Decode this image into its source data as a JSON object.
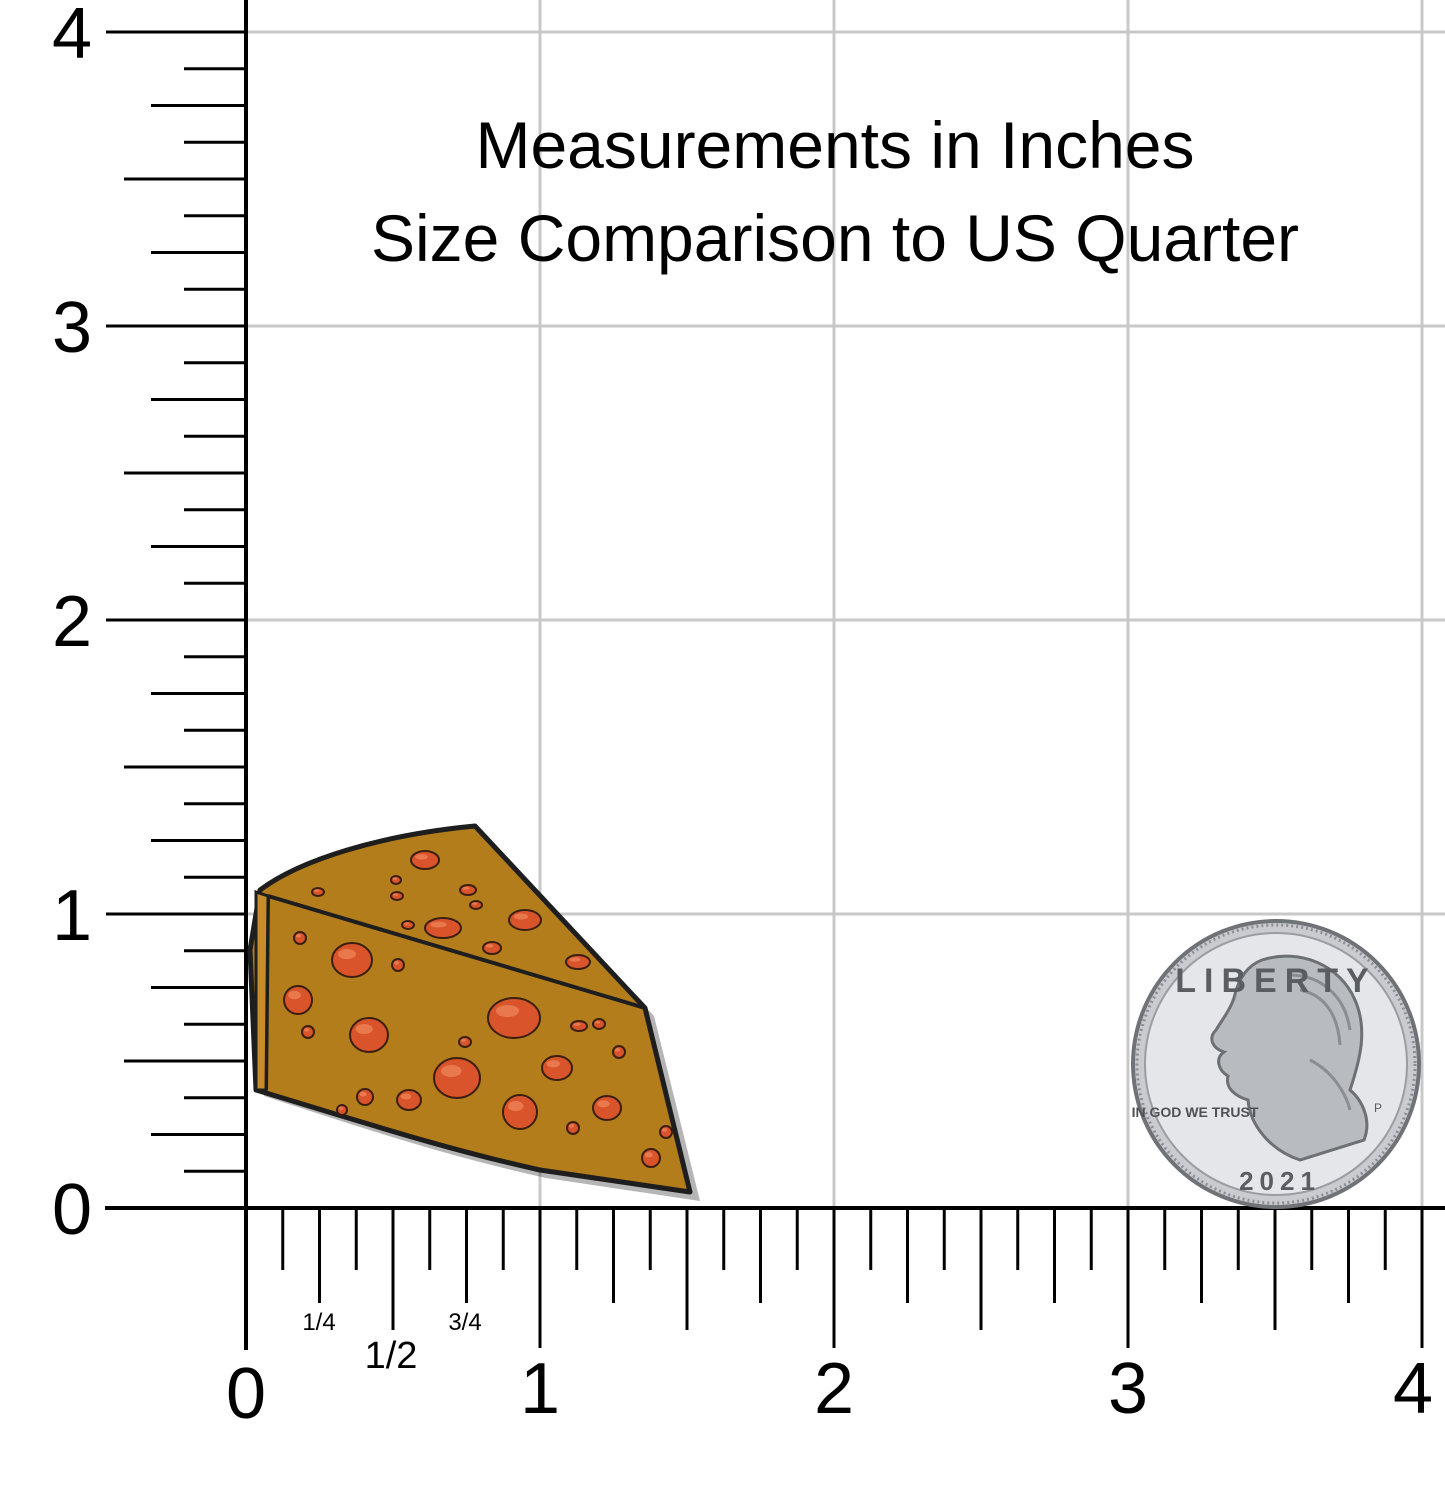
{
  "title": {
    "line1": "Measurements in Inches",
    "line2": "Size Comparison to US Quarter"
  },
  "ruler": {
    "unit": "in",
    "x_range": [
      0,
      4
    ],
    "y_range": [
      0,
      4
    ],
    "subdivisions_per_inch": 8,
    "y_labels": [
      "0",
      "1",
      "2",
      "3",
      "4"
    ],
    "x_labels": [
      "0",
      "1",
      "2",
      "3",
      "4"
    ],
    "fraction_labels": [
      "1/4",
      "1/2",
      "3/4"
    ]
  },
  "quarter": {
    "top_text": "LIBERTY",
    "motto": "IN GOD WE TRUST",
    "year": "2021",
    "mint_mark": "P"
  },
  "colors": {
    "grid": "#c8c8c8",
    "ruler": "#000000",
    "cheese": "#b37d1c",
    "cheese_outline": "#1e1e1e",
    "holes": "#d9532b",
    "coin": "#d7d9dc"
  }
}
